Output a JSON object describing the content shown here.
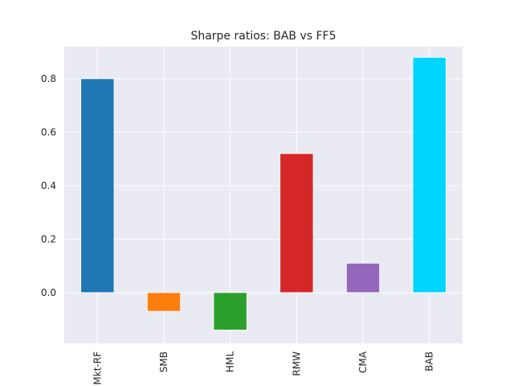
{
  "chart_data": {
    "type": "bar",
    "title": "Sharpe ratios: BAB vs FF5",
    "xlabel": "",
    "ylabel": "",
    "categories": [
      "Mkt-RF",
      "SMB",
      "HML",
      "RMW",
      "CMA",
      "BAB"
    ],
    "values": [
      0.8,
      -0.07,
      -0.14,
      0.52,
      0.11,
      0.88
    ],
    "colors": [
      "#1f77b4",
      "#ff7f0e",
      "#2ca02c",
      "#d62728",
      "#9467bd",
      "#00d5ff"
    ],
    "ylim": [
      -0.19,
      0.92
    ],
    "yticks": [
      0.0,
      0.2,
      0.4,
      0.6,
      0.8
    ],
    "ytick_labels": [
      "0.0",
      "0.2",
      "0.4",
      "0.6",
      "0.8"
    ],
    "grid": true,
    "background": "#eaeaf2"
  }
}
